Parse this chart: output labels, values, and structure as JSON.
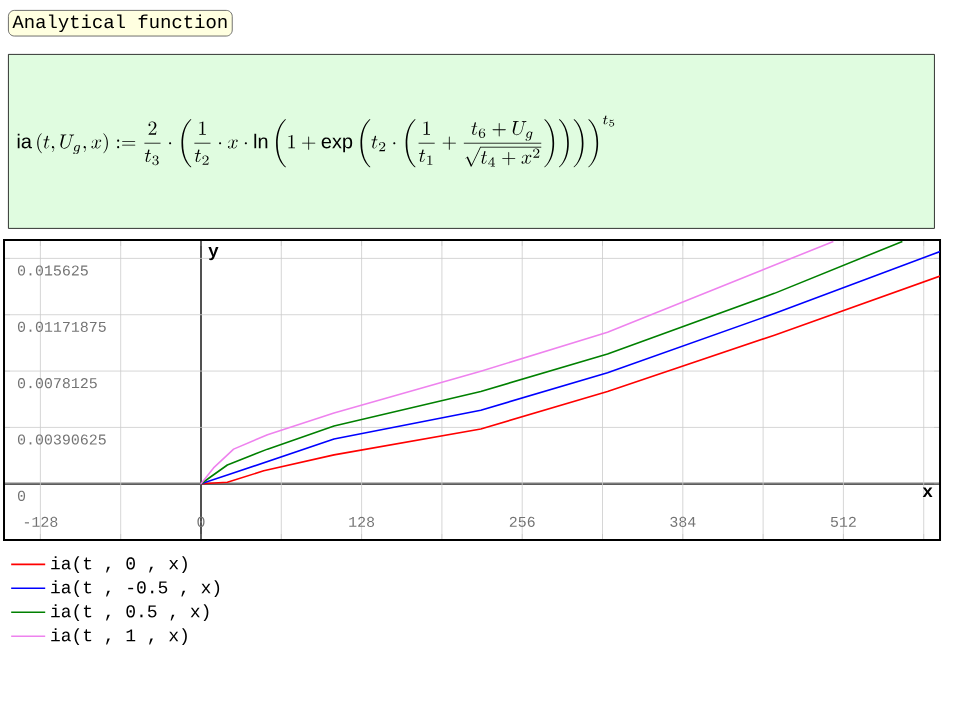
{
  "chart_data": {
    "type": "line",
    "title": "Analytical function",
    "annotations": [
      "\\mathrm{ia}\\left(t, U_g, x\\right) := \\frac{2}{t_3}\\cdot\\left(\\frac{1}{t_2}\\cdot x\\cdot \\ln\\left(1+\\exp\\left(t_2\\cdot\\left(\\frac{1}{t_1}+\\frac{t_6+U_g}{\\sqrt{t_4+x^2}}\\right)\\right)\\right)\\right)^{t_5}"
    ],
    "xlabel": "x",
    "ylabel": "y",
    "series": [
      {
        "name": "ia(t , 0 , x)",
        "color": "#ff0000",
        "x": [
          0,
          21,
          50,
          106,
          223,
          324,
          457,
          589
        ],
        "values": [
          0,
          0.0001,
          0.0009,
          0.002,
          0.0038,
          0.0064,
          0.0103,
          0.0144
        ]
      },
      {
        "name": "ia(t , -0.5 , x)",
        "color": "#0000ff",
        "x": [
          0,
          21,
          106,
          223,
          324,
          457,
          589
        ],
        "values": [
          0,
          0.0006,
          0.0031,
          0.0051,
          0.0077,
          0.0118,
          0.0161
        ]
      },
      {
        "name": "ia(t , 0.5 , x)",
        "color": "#008000",
        "x": [
          0,
          21,
          53,
          106,
          223,
          324,
          457,
          559
        ],
        "values": [
          0,
          0.0013,
          0.0024,
          0.004,
          0.0064,
          0.009,
          0.0132,
          0.0168
        ]
      },
      {
        "name": "ia(t , 1 , x)",
        "color": "#ee82ee",
        "x": [
          0,
          10,
          26,
          53,
          106,
          223,
          324,
          387,
          504
        ],
        "values": [
          0,
          0.0011,
          0.0024,
          0.0034,
          0.0049,
          0.0078,
          0.0105,
          0.0127,
          0.0168
        ]
      }
    ],
    "xlim": [
      -157,
      589
    ],
    "ylim": [
      -0.0039,
      0.0169
    ],
    "xticks": [
      {
        "value": -128,
        "label": "-128"
      },
      {
        "value": -64,
        "label": null
      },
      0,
      {
        "value": 64,
        "label": null
      },
      128,
      {
        "value": 192,
        "label": null
      },
      256,
      {
        "value": 320,
        "label": null
      },
      384,
      {
        "value": 448,
        "label": null
      },
      512,
      {
        "value": 576,
        "label": null
      }
    ],
    "yticks": [
      0,
      0.00390625,
      0.0078125,
      0.01171875,
      0.015625
    ],
    "grid": true,
    "legend": "bottom"
  }
}
